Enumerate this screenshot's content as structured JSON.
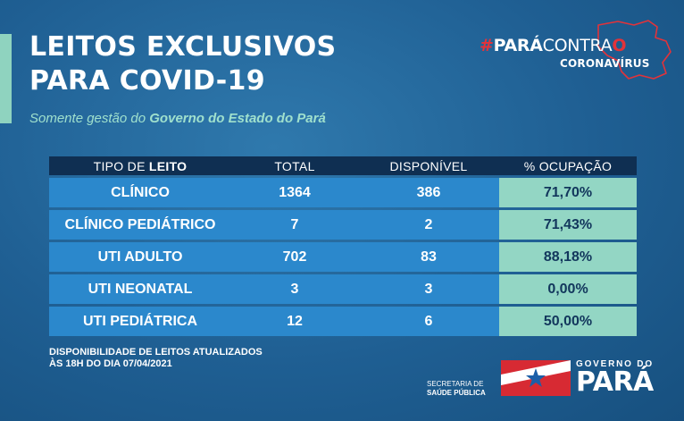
{
  "title": {
    "line1": "LEITOS EXCLUSIVOS",
    "line2": "PARA COVID-19"
  },
  "subtitle": {
    "prefix": "Somente gestão do ",
    "emphasis": "Governo do Estado do Pará"
  },
  "campaign_logo": {
    "hash": "#",
    "para": "PARÁ",
    "contra": "CONTRA",
    "o": "O",
    "coronavirus": "CORONAVÍRUS"
  },
  "table": {
    "headers": {
      "tipo_prefix": "TIPO DE ",
      "tipo_bold": "LEITO",
      "total": "TOTAL",
      "disponivel": "DISPONÍVEL",
      "ocupacao": "% OCUPAÇÃO"
    },
    "rows": [
      {
        "tipo": "CLÍNICO",
        "total": "1364",
        "disponivel": "386",
        "ocupacao": "71,70%"
      },
      {
        "tipo": "CLÍNICO PEDIÁTRICO",
        "total": "7",
        "disponivel": "2",
        "ocupacao": "71,43%"
      },
      {
        "tipo": "UTI ADULTO",
        "total": "702",
        "disponivel": "83",
        "ocupacao": "88,18%"
      },
      {
        "tipo": "UTI NEONATAL",
        "total": "3",
        "disponivel": "3",
        "ocupacao": "0,00%"
      },
      {
        "tipo": "UTI PEDIÁTRICA",
        "total": "12",
        "disponivel": "6",
        "ocupacao": "50,00%"
      }
    ]
  },
  "footnote": {
    "line1": "DISPONIBILIDADE DE LEITOS ATUALIZADOS",
    "line2": "ÀS 18H DO DIA 07/04/2021"
  },
  "footer": {
    "secretaria_line1": "SECRETARIA DE",
    "secretaria_line2": "SAÚDE PÚBLICA",
    "gov_label": "GOVERNO DO",
    "gov_name": "PARÁ"
  },
  "colors": {
    "background": "#1f5f93",
    "accent": "#8fd3bf",
    "header_row": "#0f2f52",
    "data_cell": "#2b88cc",
    "pct_cell": "#93d6c4",
    "campaign_red": "#e2333a"
  }
}
